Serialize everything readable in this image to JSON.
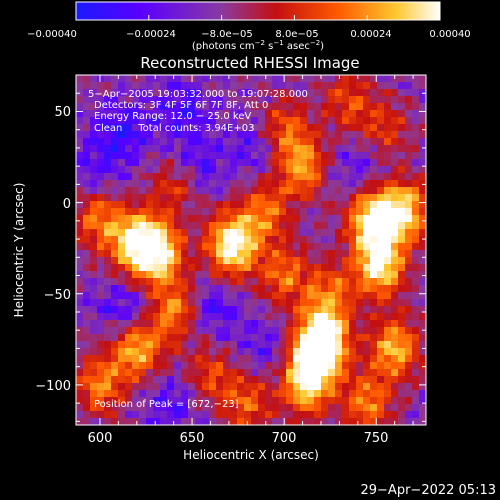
{
  "colorbar": {
    "ticks": [
      "−0.00040",
      "−0.00024",
      "−8.0e−05",
      "8.0e−05",
      "0.00024",
      "0.00040"
    ],
    "units": "(photons cm",
    "units_sup1": "−2",
    "units_mid": " s",
    "units_sup2": "−1",
    "units_end": " asec",
    "units_sup3": "−2",
    "units_close": ")",
    "colors": [
      "#1a1aff",
      "#5a00ff",
      "#8a3aa0",
      "#c41010",
      "#ff5a00",
      "#ffc830",
      "#ffffff"
    ]
  },
  "chart_data": {
    "type": "heatmap",
    "title": "Reconstructed RHESSI Image",
    "xlabel": "Heliocentric X (arcsec)",
    "ylabel": "Heliocentric Y (arcsec)",
    "xlim": [
      587,
      777
    ],
    "ylim": [
      -122,
      70
    ],
    "x_ticks": [
      600,
      650,
      700,
      750
    ],
    "y_ticks": [
      50,
      0,
      -50,
      -100
    ],
    "x_tick_labels": [
      "600",
      "650",
      "700",
      "750"
    ],
    "y_tick_labels": [
      "50",
      "0",
      "−50",
      "−100"
    ],
    "annotations": [
      "5−Apr−2005 19:03:32.000 to 19:07:28.000",
      "Detectors: 3F 4F 5F 6F 7F 8F, Att 0",
      "Energy Range: 12.0 − 25.0 keV",
      "Clean     Total counts: 3.94E+03"
    ],
    "peak_label": "Position of Peak = [672,−23]",
    "peak": [
      672,
      -23
    ],
    "colorbar_range": [
      -0.0004,
      0.0004
    ],
    "hotspots": [
      {
        "x": 672,
        "y": -23,
        "v": 1.0
      },
      {
        "x": 620,
        "y": -22,
        "v": 0.85
      },
      {
        "x": 632,
        "y": -28,
        "v": 0.8
      },
      {
        "x": 620,
        "y": -80,
        "v": 0.7
      },
      {
        "x": 640,
        "y": -60,
        "v": 0.6
      },
      {
        "x": 717,
        "y": -82,
        "v": 0.85
      },
      {
        "x": 712,
        "y": -100,
        "v": 0.75
      },
      {
        "x": 722,
        "y": -75,
        "v": 0.7
      },
      {
        "x": 748,
        "y": -10,
        "v": 0.9
      },
      {
        "x": 752,
        "y": -35,
        "v": 0.85
      },
      {
        "x": 765,
        "y": -5,
        "v": 0.8
      },
      {
        "x": 760,
        "y": -80,
        "v": 0.7
      },
      {
        "x": 745,
        "y": -110,
        "v": 0.55
      },
      {
        "x": 710,
        "y": 20,
        "v": 0.6
      },
      {
        "x": 700,
        "y": 40,
        "v": 0.45
      },
      {
        "x": 755,
        "y": 40,
        "v": 0.35
      },
      {
        "x": 600,
        "y": -10,
        "v": 0.5
      },
      {
        "x": 600,
        "y": -100,
        "v": 0.55
      },
      {
        "x": 690,
        "y": -5,
        "v": 0.5
      },
      {
        "x": 700,
        "y": -40,
        "v": 0.5
      },
      {
        "x": 640,
        "y": 10,
        "v": 0.4
      },
      {
        "x": 680,
        "y": -110,
        "v": 0.45
      },
      {
        "x": 660,
        "y": -95,
        "v": 0.4
      },
      {
        "x": 735,
        "y": 55,
        "v": 0.4
      },
      {
        "x": 725,
        "y": -50,
        "v": 0.5
      }
    ],
    "coldspots": [
      {
        "x": 612,
        "y": 40,
        "v": 0.8
      },
      {
        "x": 650,
        "y": 20,
        "v": 0.7
      },
      {
        "x": 645,
        "y": 50,
        "v": 0.7
      },
      {
        "x": 615,
        "y": -60,
        "v": 0.8
      },
      {
        "x": 660,
        "y": -60,
        "v": 0.7
      },
      {
        "x": 685,
        "y": 30,
        "v": 0.6
      },
      {
        "x": 640,
        "y": -110,
        "v": 0.6
      },
      {
        "x": 740,
        "y": 20,
        "v": 0.5
      },
      {
        "x": 690,
        "y": -80,
        "v": 0.5
      },
      {
        "x": 600,
        "y": 20,
        "v": 0.5
      }
    ]
  },
  "timestamp": "29−Apr−2022 05:13"
}
